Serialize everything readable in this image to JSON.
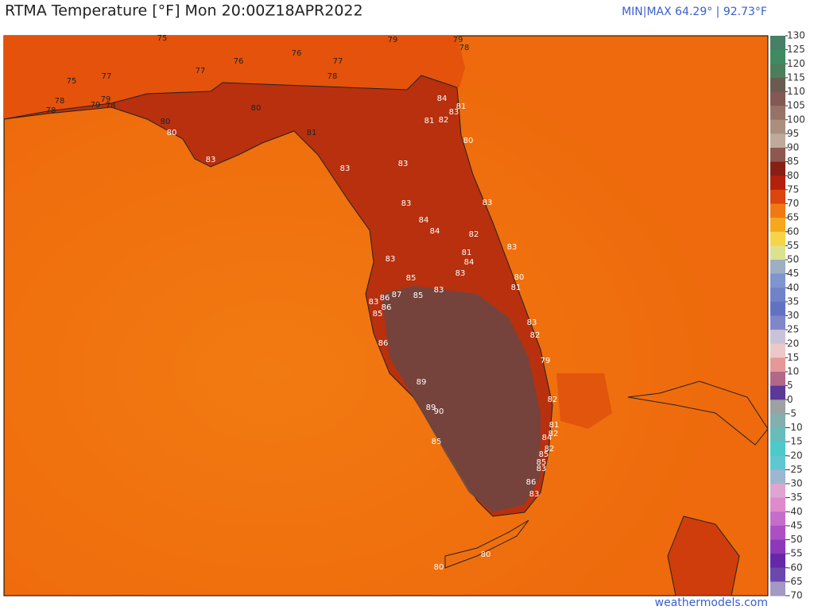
{
  "header": {
    "title": "RTMA Temperature [°F]  Mon 20:00Z18APR2022",
    "minmax": "MIN|MAX 64.29° | 92.73°F"
  },
  "colorbar": {
    "ticks": [
      130,
      125,
      120,
      115,
      110,
      105,
      100,
      95,
      90,
      85,
      80,
      75,
      70,
      65,
      60,
      55,
      50,
      45,
      40,
      35,
      30,
      25,
      20,
      15,
      10,
      5,
      0,
      -5,
      -10,
      -15,
      -20,
      -25,
      -30,
      -35,
      -40,
      -45,
      -50,
      -55,
      -60,
      -65,
      -70
    ]
  },
  "stations": [
    75,
    79,
    79,
    78,
    76,
    76,
    77,
    78,
    75,
    77,
    77,
    79,
    78,
    79,
    78,
    78,
    80,
    84,
    81,
    83,
    81,
    82,
    80,
    80,
    81,
    80,
    83,
    83,
    83,
    83,
    83,
    84,
    84,
    82,
    83,
    81,
    84,
    83,
    83,
    80,
    85,
    81,
    83,
    87,
    86,
    85,
    83,
    86,
    85,
    83,
    82,
    86,
    79,
    89,
    82,
    89,
    90,
    81,
    82,
    84,
    82,
    85,
    85,
    85,
    83,
    86,
    83,
    80,
    80
  ],
  "footer": {
    "credit": "weathermodels.com"
  }
}
